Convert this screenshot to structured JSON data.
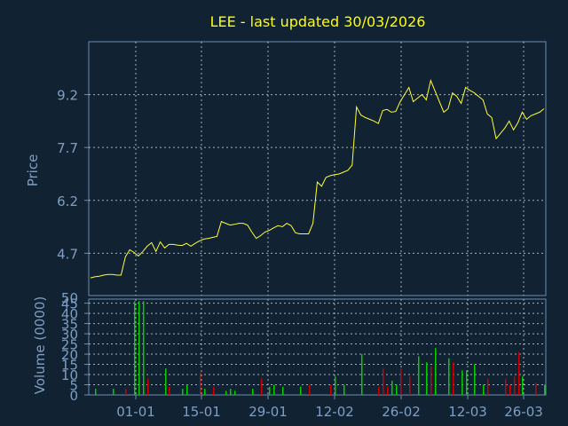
{
  "colors": {
    "background": "#112233",
    "frame": "#6b8fb3",
    "grid": "#d9dee6",
    "axis_text": "#7f9fc2",
    "title": "#ffff00",
    "price_line": "#ffff33",
    "volume_up": "#00cc00",
    "volume_down": "#cc0000"
  },
  "chart_data": [
    {
      "type": "line",
      "title": "LEE - last updated 30/03/2026",
      "ylabel": "Price",
      "xlabel": "",
      "ylim": [
        3.5,
        10.7
      ],
      "yticks": [
        4.7,
        6.2,
        7.7,
        9.2
      ],
      "ytick_labels": [
        "4.7",
        "6.2",
        "7.7",
        "9.2"
      ],
      "grid": true,
      "series": [
        {
          "values": [
            4.0,
            4.03,
            4.05,
            4.08,
            4.1,
            4.1,
            4.08,
            4.08,
            4.6,
            4.8,
            4.72,
            4.62,
            4.75,
            4.9,
            5.0,
            4.75,
            5.02,
            4.85,
            4.95,
            4.95,
            4.93,
            4.92,
            4.98,
            4.9,
            4.98,
            5.05,
            5.1,
            5.12,
            5.15,
            5.18,
            5.6,
            5.55,
            5.5,
            5.52,
            5.55,
            5.55,
            5.5,
            5.3,
            5.12,
            5.2,
            5.3,
            5.35,
            5.42,
            5.48,
            5.45,
            5.55,
            5.48,
            5.28,
            5.25,
            5.25,
            5.25,
            5.55,
            6.72,
            6.6,
            6.85,
            6.9,
            6.93,
            6.95,
            7.0,
            7.05,
            7.2,
            8.85,
            8.62,
            8.55,
            8.5,
            8.45,
            8.38,
            8.75,
            8.78,
            8.7,
            8.72,
            9.0,
            9.2,
            9.4,
            9.0,
            9.1,
            9.2,
            9.05,
            9.6,
            9.3,
            9.0,
            8.7,
            8.8,
            9.25,
            9.15,
            8.95,
            9.4,
            9.32,
            9.25,
            9.15,
            9.05,
            8.65,
            8.55,
            7.95,
            8.1,
            8.25,
            8.45,
            8.2,
            8.4,
            8.7,
            8.5,
            8.6,
            8.65,
            8.7,
            8.8
          ]
        }
      ]
    },
    {
      "type": "bar",
      "ylabel": "Volume (0000)",
      "xlabel": "",
      "ylim": [
        0,
        47
      ],
      "yticks": [
        0,
        5,
        10,
        15,
        20,
        25,
        30,
        35,
        40,
        45,
        50
      ],
      "ytick_labels": [
        "0",
        "5",
        "10",
        "15",
        "20",
        "25",
        "30",
        "35",
        "40",
        "45",
        "50"
      ],
      "xtick_labels": [
        "01-01",
        "15-01",
        "29-01",
        "12-02",
        "26-02",
        "12-03",
        "26-03"
      ],
      "grid": true,
      "series": [
        {
          "name": "up",
          "x": [
            1,
            5,
            10,
            11,
            12,
            17,
            21,
            22,
            26,
            31,
            32,
            33,
            37,
            41,
            42,
            44,
            48,
            56,
            58,
            62,
            69,
            70,
            75,
            77,
            79,
            82,
            85,
            86,
            88,
            90,
            99,
            104
          ],
          "values": [
            3,
            3,
            46,
            46,
            46,
            13,
            3,
            5,
            3,
            2,
            3,
            2,
            3,
            4,
            5,
            4,
            4,
            9,
            5,
            20,
            7,
            5,
            19,
            16,
            23,
            18,
            12,
            12,
            15,
            5,
            9,
            5
          ]
        },
        {
          "name": "down",
          "x": [
            8,
            13,
            18,
            25,
            28,
            39,
            50,
            55,
            66,
            67,
            68,
            71,
            73,
            78,
            83,
            91,
            95,
            96,
            97,
            98,
            102
          ],
          "values": [
            3,
            8,
            4,
            11,
            4,
            8,
            5,
            5,
            4,
            13,
            4,
            13,
            9,
            14,
            16,
            8,
            8,
            5,
            9,
            21,
            6
          ]
        }
      ]
    }
  ]
}
